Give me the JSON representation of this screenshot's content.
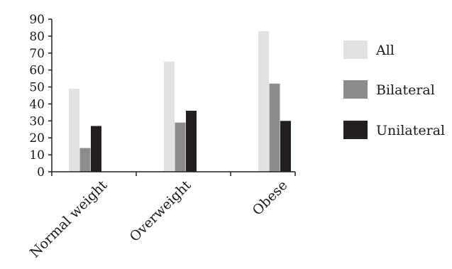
{
  "chart_data": {
    "type": "bar",
    "categories": [
      "Normal weight",
      "Overweight",
      "Obese"
    ],
    "series": [
      {
        "name": "All",
        "values": [
          49,
          65,
          83
        ],
        "color": "#e1e2e4"
      },
      {
        "name": "Bilateral",
        "values": [
          14,
          29,
          52
        ],
        "color": "#8c8c8e"
      },
      {
        "name": "Unilateral",
        "values": [
          27,
          36,
          30
        ],
        "color": "#231f20"
      }
    ],
    "ylim": [
      0,
      90
    ],
    "yticks": [
      0,
      10,
      20,
      30,
      40,
      50,
      60,
      70,
      80,
      90
    ],
    "xlabel": "",
    "ylabel": "",
    "title": "",
    "legend_position": "right",
    "grid": false,
    "axis_color": "#231f20"
  }
}
